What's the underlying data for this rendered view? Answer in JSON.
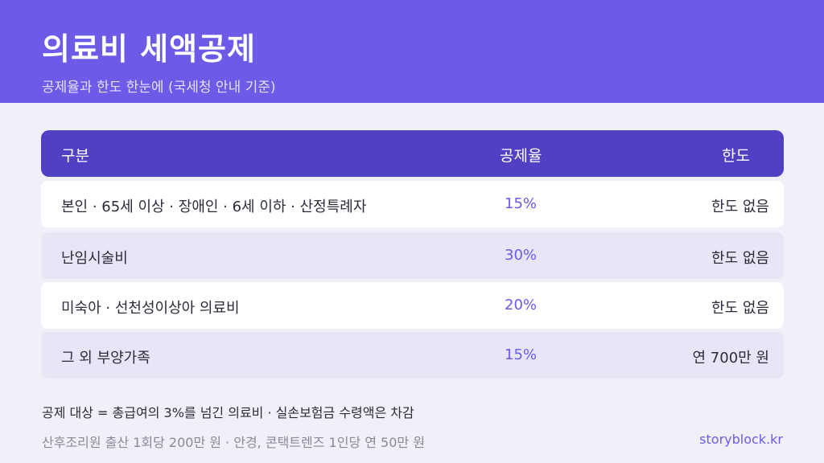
{
  "header": {
    "title": "의료비 세액공제",
    "subtitle": "공제율과 한도 한눈에 (국세청 안내 기준)"
  },
  "table": {
    "columns": [
      "구분",
      "공제율",
      "한도"
    ],
    "rows": [
      {
        "category": "본인 · 65세 이상 · 장애인 · 6세 이하 · 산정특례자",
        "rate": "15%",
        "limit": "한도 없음"
      },
      {
        "category": "난임시술비",
        "rate": "30%",
        "limit": "한도 없음"
      },
      {
        "category": "미숙아 · 선천성이상아 의료비",
        "rate": "20%",
        "limit": "한도 없음"
      },
      {
        "category": "그 외 부양가족",
        "rate": "15%",
        "limit": "연 700만 원"
      }
    ]
  },
  "notes": {
    "line1": "공제 대상 = 총급여의 3%를 넘긴 의료비 · 실손보험금 수령액은 차감",
    "line2": "산후조리원 출산 1회당 200만 원 · 안경, 콘택트렌즈 1인당 연 50만 원"
  },
  "brand": "storyblock.kr",
  "colors": {
    "accent": "#6b5be6",
    "header_row": "#4f40c4",
    "background": "#f1f0f9"
  }
}
